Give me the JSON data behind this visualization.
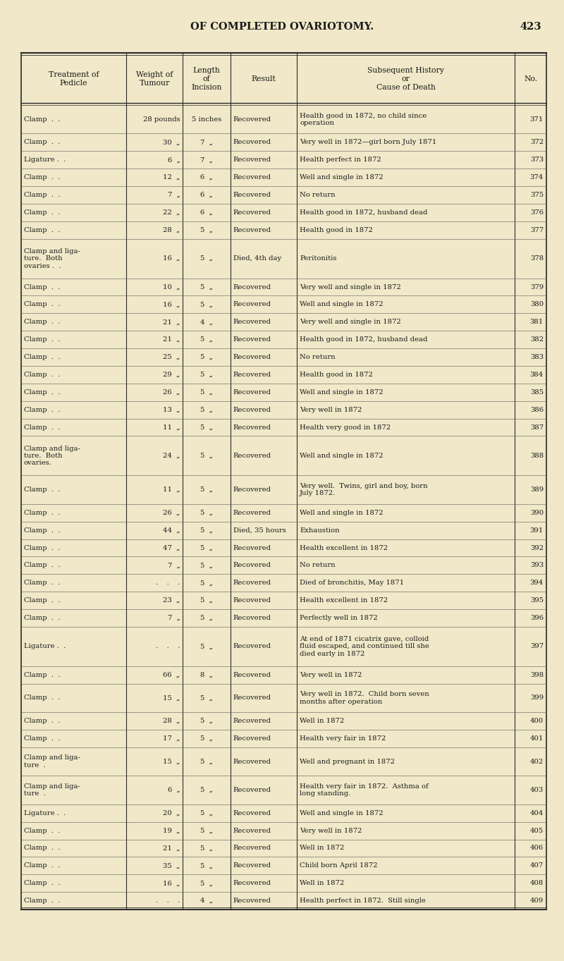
{
  "page_title": "OF COMPLETED OVARIOTOMY.",
  "page_number": "423",
  "bg_color": "#f0e8c8",
  "header_cols": [
    "Treatment of\nPedicle",
    "Weight of\nTumour",
    "Length\nof\nIncision",
    "Result",
    "Subsequent History\nor\nCause of Death",
    "No."
  ],
  "rows": [
    [
      "Clamp  .  .",
      "28 pounds",
      "5 inches",
      "Recovered",
      "Health good in 1872, no child since\noperation",
      "371"
    ],
    [
      "Clamp  .  .",
      "30  „",
      "7  „",
      "Recovered",
      "Very well in 1872—girl born July 1871",
      "372"
    ],
    [
      "Ligature .  .",
      "6  „",
      "7  „",
      "Recovered",
      "Health perfect in 1872",
      "373"
    ],
    [
      "Clamp  .  .",
      "12  „",
      "6  „",
      "Recovered",
      "Well and single in 1872",
      "374"
    ],
    [
      "Clamp  .  .",
      "7  „",
      "6  „",
      "Recovered",
      "No return",
      "375"
    ],
    [
      "Clamp  .  .",
      "22  „",
      "6  „",
      "Recovered",
      "Health good in 1872, husband dead",
      "376"
    ],
    [
      "Clamp  .  .",
      "28  „",
      "5  „",
      "Recovered",
      "Health good in 1872",
      "377"
    ],
    [
      "Clamp and liga-\nture.  Both\novaries .  .",
      "16  „",
      "5  „",
      "Died, 4th day",
      "Peritonitis",
      "378"
    ],
    [
      "Clamp  .  .",
      "10  „",
      "5  „",
      "Recovered",
      "Very well and single in 1872",
      "379"
    ],
    [
      "Clamp  .  .",
      "16  „",
      "5  „",
      "Recovered",
      "Well and single in 1872",
      "380"
    ],
    [
      "Clamp  .  .",
      "21  „",
      "4  „",
      "Recovered",
      "Very well and single in 1872",
      "381"
    ],
    [
      "Clamp  .  .",
      "21  „",
      "5  „",
      "Recovered",
      "Health good in 1872, husband dead",
      "382"
    ],
    [
      "Clamp  .  .",
      "25  „",
      "5  „",
      "Recovered",
      "No return",
      "383"
    ],
    [
      "Clamp  .  .",
      "29  „",
      "5  „",
      "Recovered",
      "Health good in 1872",
      "384"
    ],
    [
      "Clamp  .  .",
      "26  „",
      "5  „",
      "Recovered",
      "Well and single in 1872",
      "385"
    ],
    [
      "Clamp  .  .",
      "13  „",
      "5  „",
      "Recovered",
      "Very well in 1872",
      "386"
    ],
    [
      "Clamp  .  .",
      "11  „",
      "5  „",
      "Recovered",
      "Health very good in 1872",
      "387"
    ],
    [
      "Clamp and liga-\nture.  Both\novaries.",
      "24  „",
      "5  „",
      "Recovered",
      "Well and single in 1872",
      "388"
    ],
    [
      "Clamp  .  .",
      "11  „",
      "5  „",
      "Recovered",
      "Very well.  Twins, girl and boy, born\nJuly 1872.",
      "389"
    ],
    [
      "Clamp  .  .",
      "26  „",
      "5  „",
      "Recovered",
      "Well and single in 1872",
      "390"
    ],
    [
      "Clamp  .  .",
      "44  „",
      "5  „",
      "Died, 35 hours",
      "Exhaustion",
      "391"
    ],
    [
      "Clamp  .  .",
      "47  „",
      "5  „",
      "Recovered",
      "Health excellent in 1872",
      "392"
    ],
    [
      "Clamp  .  .",
      "7  „",
      "5  „",
      "Recovered",
      "No return",
      "393"
    ],
    [
      "Clamp  .  .",
      ".    .    .",
      "5  „",
      "Recovered",
      "Died of bronchitis, May 1871",
      "394"
    ],
    [
      "Clamp  .  .",
      "23  „",
      "5  „",
      "Recovered",
      "Health excellent in 1872",
      "395"
    ],
    [
      "Clamp  .  .",
      "7  „",
      "5  „",
      "Recovered",
      "Perfectly well in 1872",
      "396"
    ],
    [
      "Ligature .  .",
      ".    .    .",
      "5  „",
      "Recovered",
      "At end of 1871 cicatrix gave, colloid\nfluid escaped, and continued till she\ndied early in 1872",
      "397"
    ],
    [
      "Clamp  .  .",
      "66  „",
      "8  „",
      "Recovered",
      "Very well in 1872",
      "398"
    ],
    [
      "Clamp  .  .",
      "15  „",
      "5  „",
      "Recovered",
      "Very well in 1872.  Child born seven\nmonths after operation",
      "399"
    ],
    [
      "Clamp  .  .",
      "28  „",
      "5  „",
      "Recovered",
      "Well in 1872",
      "400"
    ],
    [
      "Clamp  .  .",
      "17  „",
      "5  „",
      "Recovered",
      "Health very fair in 1872",
      "401"
    ],
    [
      "Clamp and liga-\nture  .",
      "15  „",
      "5  „",
      "Recovered",
      "Well and pregnant in 1872",
      "402"
    ],
    [
      "Clamp and liga-\nture  .",
      "6  „",
      "5  „",
      "Recovered",
      "Health very fair in 1872.  Asthma of\nlong standing.",
      "403"
    ],
    [
      "Ligature .  .",
      "20  „",
      "5  „",
      "Recovered",
      "Well and single in 1872",
      "404"
    ],
    [
      "Clamp  .  .",
      "19  „",
      "5  „",
      "Recovered",
      "Very well in 1872",
      "405"
    ],
    [
      "Clamp  .  .",
      "21  „",
      "5  „",
      "Recovered",
      "Well in 1872",
      "406"
    ],
    [
      "Clamp  .  .",
      "35  „",
      "5  „",
      "Recovered",
      "Child born April 1872",
      "407"
    ],
    [
      "Clamp  .  .",
      "16  „",
      "5  „",
      "Recovered",
      "Well in 1872",
      "408"
    ],
    [
      "Clamp  .  .",
      ".    .    .",
      "4  „",
      "Recovered",
      "Health perfect in 1872.  Still single",
      "409"
    ]
  ],
  "font_size": 7.2,
  "header_font_size": 7.8,
  "title_font_size": 10.5
}
